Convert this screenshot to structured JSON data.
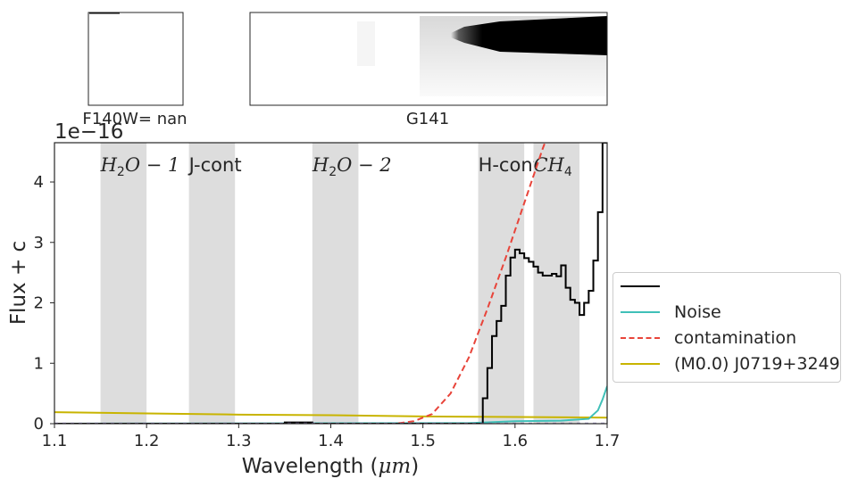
{
  "thumbnails": {
    "direct_label": "F140W= nan",
    "grism_label": "G141"
  },
  "chart_data": {
    "type": "line",
    "xlabel": "Wavelength ($\\mu m$)",
    "xlabel_plain": "Wavelength (",
    "xlabel_mu": "μm",
    "xlabel_close": ")",
    "ylabel": "Flux + c",
    "offset_text": "1e−16",
    "xlim": [
      1.1,
      1.7
    ],
    "ylim": [
      0,
      4.65
    ],
    "xticks": [
      1.1,
      1.2,
      1.3,
      1.4,
      1.5,
      1.6,
      1.7
    ],
    "xtick_labels": [
      "1.1",
      "1.2",
      "1.3",
      "1.4",
      "1.5",
      "1.6",
      "1.7"
    ],
    "yticks": [
      0,
      1,
      2,
      3,
      4
    ],
    "ytick_labels": [
      "0",
      "1",
      "2",
      "3",
      "4"
    ],
    "grid": false,
    "legend_position": "right",
    "bands": [
      {
        "label": "H2O-1",
        "x0": 1.15,
        "x1": 1.2,
        "math": true,
        "sub": "2",
        "pre": "H",
        "post": "O − 1"
      },
      {
        "label": "J-cont",
        "x0": 1.246,
        "x1": 1.296,
        "math": false
      },
      {
        "label": "H2O-2",
        "x0": 1.38,
        "x1": 1.43,
        "math": true,
        "sub": "2",
        "pre": "H",
        "post": "O − 2"
      },
      {
        "label": "H-cont",
        "x0": 1.56,
        "x1": 1.61,
        "math": false
      },
      {
        "label": "CH4",
        "x0": 1.62,
        "x1": 1.67,
        "math": true,
        "sub": "4",
        "pre": "CH",
        "post": ""
      }
    ],
    "series": [
      {
        "name": "",
        "color": "#000000",
        "style": "step",
        "x": [
          1.1,
          1.35,
          1.38,
          1.56,
          1.565,
          1.57,
          1.575,
          1.58,
          1.585,
          1.59,
          1.595,
          1.6,
          1.605,
          1.61,
          1.615,
          1.62,
          1.625,
          1.63,
          1.635,
          1.64,
          1.645,
          1.65,
          1.655,
          1.66,
          1.665,
          1.67,
          1.675,
          1.68,
          1.685,
          1.69,
          1.695,
          1.7
        ],
        "y": [
          0.0,
          0.02,
          0.0,
          0.0,
          0.42,
          0.92,
          1.45,
          1.7,
          1.95,
          2.45,
          2.75,
          2.88,
          2.82,
          2.74,
          2.68,
          2.6,
          2.5,
          2.45,
          2.45,
          2.48,
          2.44,
          2.62,
          2.25,
          2.05,
          2.0,
          1.8,
          2.0,
          2.2,
          2.7,
          3.5,
          4.65,
          4.65
        ]
      },
      {
        "name": "Noise",
        "color": "#40c0b8",
        "style": "line",
        "x": [
          1.1,
          1.55,
          1.6,
          1.65,
          1.68,
          1.69,
          1.695,
          1.7
        ],
        "y": [
          0.0,
          0.01,
          0.04,
          0.05,
          0.08,
          0.22,
          0.4,
          0.62
        ]
      },
      {
        "name": "contamination",
        "color": "#e8443a",
        "style": "dashed",
        "x": [
          1.1,
          1.47,
          1.49,
          1.51,
          1.53,
          1.55,
          1.57,
          1.59,
          1.6,
          1.61,
          1.62,
          1.63,
          1.64
        ],
        "y": [
          0.0,
          0.0,
          0.04,
          0.16,
          0.5,
          1.1,
          1.9,
          2.75,
          3.2,
          3.65,
          4.1,
          4.55,
          4.95
        ]
      },
      {
        "name": "(M0.0) J0719+3249",
        "color": "#c8b400",
        "style": "line",
        "x": [
          1.1,
          1.2,
          1.3,
          1.4,
          1.5,
          1.6,
          1.7
        ],
        "y": [
          0.19,
          0.17,
          0.15,
          0.14,
          0.12,
          0.11,
          0.1
        ]
      }
    ]
  }
}
